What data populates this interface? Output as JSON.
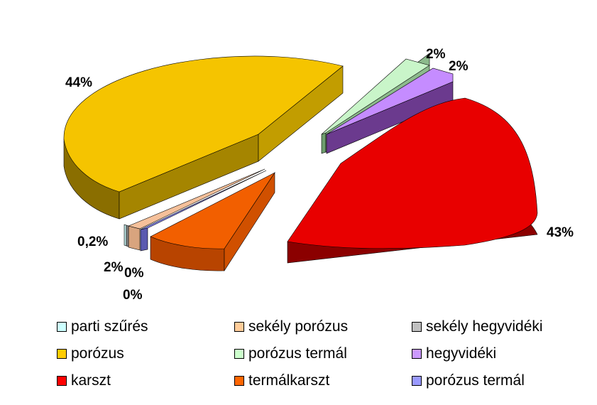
{
  "chart_data": {
    "type": "pie",
    "title": "",
    "slices": [
      {
        "name": "porózus",
        "value": 44,
        "label": "44%",
        "color": "#F5C400"
      },
      {
        "name": "porózus termál",
        "value": 2,
        "label": "2%",
        "color": "#C9F5C9"
      },
      {
        "name": "hegyvidéki",
        "value": 2,
        "label": "2%",
        "color": "#C58CFF"
      },
      {
        "name": "karszt",
        "value": 43,
        "label": "43%",
        "color": "#E80000"
      },
      {
        "name": "termálkarszt",
        "value": 7,
        "label": "",
        "color": "#F25F00"
      },
      {
        "name": "porózus termál",
        "value": 0,
        "label": "0%",
        "color": "#7F7FE5"
      },
      {
        "name": "sekély porózus",
        "value": 2,
        "label": "2%",
        "color": "#F5C09A"
      },
      {
        "name": "sekély hegyvidéki",
        "value": 0,
        "label": "0%",
        "color": "#A8A8A8"
      },
      {
        "name": "parti szűrés",
        "value": 0.2,
        "label": "0,2%",
        "color": "#C9F5F5"
      }
    ],
    "legend": {
      "placement": "bottom",
      "items": [
        {
          "label": "parti szűrés",
          "color": "#CCFFFF"
        },
        {
          "label": "sekély porózus",
          "color": "#FFCC99"
        },
        {
          "label": "sekély hegyvidéki",
          "color": "#C0C0C0"
        },
        {
          "label": "porózus",
          "color": "#FFCC00"
        },
        {
          "label": "porózus termál",
          "color": "#CCFFCC"
        },
        {
          "label": "hegyvidéki",
          "color": "#CC99FF"
        },
        {
          "label": "karszt",
          "color": "#FF0000"
        },
        {
          "label": "termálkarszt",
          "color": "#FF6600"
        },
        {
          "label": "porózus termál",
          "color": "#9999FF"
        }
      ]
    }
  }
}
